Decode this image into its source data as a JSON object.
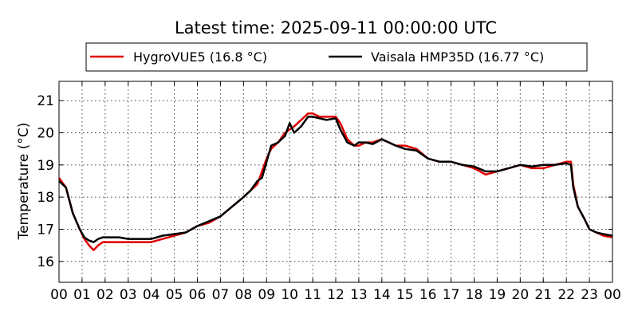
{
  "chart_data": {
    "type": "line",
    "title": "Latest time: 2025-09-11 00:00:00 UTC",
    "xlabel": "",
    "ylabel": "Temperature (°C)",
    "x_tick_labels": [
      "00",
      "01",
      "02",
      "03",
      "04",
      "05",
      "06",
      "07",
      "08",
      "09",
      "10",
      "11",
      "12",
      "13",
      "14",
      "15",
      "16",
      "17",
      "18",
      "19",
      "20",
      "21",
      "22",
      "23",
      "00"
    ],
    "x_ticks": [
      0,
      1,
      2,
      3,
      4,
      5,
      6,
      7,
      8,
      9,
      10,
      11,
      12,
      13,
      14,
      15,
      16,
      17,
      18,
      19,
      20,
      21,
      22,
      23,
      24
    ],
    "xlim": [
      0,
      24
    ],
    "ylim": [
      15.35,
      21.6
    ],
    "y_ticks": [
      16,
      17,
      18,
      19,
      20,
      21
    ],
    "y_tick_labels": [
      "16",
      "17",
      "18",
      "19",
      "20",
      "21"
    ],
    "grid": true,
    "legend_position": "top-center",
    "series": [
      {
        "name": "HygroVUE5 (16.8 °C)",
        "color": "#e00000",
        "x": [
          0,
          0.3,
          0.6,
          0.9,
          1.1,
          1.3,
          1.5,
          1.7,
          1.9,
          2.2,
          2.6,
          3.0,
          3.5,
          4.0,
          4.5,
          5.0,
          5.5,
          6.0,
          6.5,
          7.0,
          7.5,
          8.0,
          8.3,
          8.6,
          8.8,
          9.0,
          9.2,
          9.5,
          9.8,
          10.2,
          10.5,
          10.8,
          11.0,
          11.3,
          11.6,
          12.0,
          12.2,
          12.5,
          12.8,
          13.0,
          13.3,
          13.6,
          14.0,
          14.3,
          14.6,
          15.0,
          15.5,
          16.0,
          16.5,
          17.0,
          17.5,
          18.0,
          18.5,
          19.0,
          19.5,
          20.0,
          20.5,
          21.0,
          21.5,
          22.0,
          22.2,
          22.3,
          22.5,
          22.8,
          23.0,
          23.3,
          23.6,
          24.0
        ],
        "y": [
          18.6,
          18.3,
          17.5,
          17.0,
          16.7,
          16.5,
          16.35,
          16.5,
          16.6,
          16.6,
          16.6,
          16.6,
          16.6,
          16.6,
          16.7,
          16.8,
          16.9,
          17.1,
          17.2,
          17.4,
          17.7,
          18.0,
          18.2,
          18.4,
          18.8,
          19.2,
          19.5,
          19.7,
          20.0,
          20.2,
          20.4,
          20.6,
          20.6,
          20.5,
          20.5,
          20.5,
          20.3,
          19.8,
          19.6,
          19.6,
          19.7,
          19.7,
          19.8,
          19.7,
          19.6,
          19.6,
          19.5,
          19.2,
          19.1,
          19.1,
          19.0,
          18.9,
          18.7,
          18.8,
          18.9,
          19.0,
          18.9,
          18.9,
          19.0,
          19.1,
          19.1,
          18.4,
          17.7,
          17.3,
          17.0,
          16.9,
          16.8,
          16.75
        ]
      },
      {
        "name": "Vaisala HMP35D (16.77 °C)",
        "color": "#000000",
        "x": [
          0,
          0.3,
          0.6,
          0.9,
          1.1,
          1.3,
          1.5,
          1.7,
          1.9,
          2.2,
          2.6,
          3.0,
          3.5,
          4.0,
          4.5,
          5.0,
          5.5,
          6.0,
          6.5,
          7.0,
          7.5,
          8.0,
          8.3,
          8.6,
          8.8,
          9.0,
          9.2,
          9.5,
          9.8,
          10.0,
          10.2,
          10.5,
          10.8,
          11.0,
          11.3,
          11.6,
          12.0,
          12.2,
          12.5,
          12.8,
          13.0,
          13.3,
          13.6,
          14.0,
          14.3,
          14.6,
          15.0,
          15.5,
          16.0,
          16.5,
          17.0,
          17.5,
          18.0,
          18.5,
          19.0,
          19.5,
          20.0,
          20.5,
          21.0,
          21.5,
          22.0,
          22.2,
          22.3,
          22.5,
          22.8,
          23.0,
          23.3,
          23.6,
          24.0
        ],
        "y": [
          18.5,
          18.3,
          17.5,
          17.0,
          16.75,
          16.65,
          16.6,
          16.7,
          16.75,
          16.75,
          16.75,
          16.7,
          16.7,
          16.7,
          16.8,
          16.85,
          16.9,
          17.1,
          17.25,
          17.4,
          17.7,
          18.0,
          18.2,
          18.5,
          18.6,
          19.1,
          19.6,
          19.7,
          19.9,
          20.3,
          20.0,
          20.2,
          20.5,
          20.5,
          20.45,
          20.4,
          20.45,
          20.1,
          19.7,
          19.6,
          19.7,
          19.7,
          19.65,
          19.8,
          19.7,
          19.6,
          19.5,
          19.45,
          19.2,
          19.1,
          19.1,
          19.0,
          18.95,
          18.8,
          18.8,
          18.9,
          19.0,
          18.95,
          19.0,
          19.0,
          19.05,
          19.0,
          18.3,
          17.7,
          17.3,
          17.0,
          16.9,
          16.85,
          16.8
        ]
      }
    ]
  }
}
